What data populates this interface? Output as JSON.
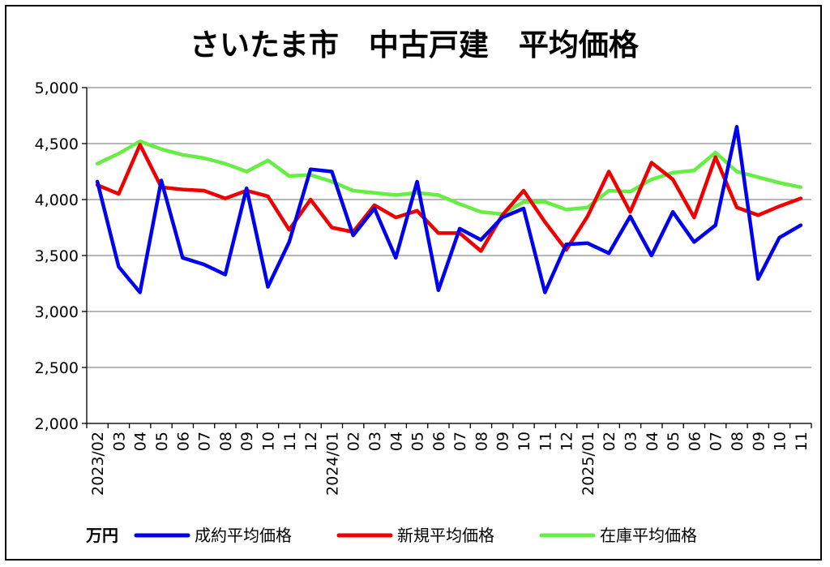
{
  "chart_data": {
    "type": "line",
    "title": "さいたま市　中古戸建　平均価格",
    "unit_label": "万円",
    "ylim": [
      2000,
      5000
    ],
    "yticks": [
      2000,
      2500,
      3000,
      3500,
      4000,
      4500,
      5000
    ],
    "ytick_labels": [
      "2,000",
      "2,500",
      "3,000",
      "3,500",
      "4,000",
      "4,500",
      "5,000"
    ],
    "x_labels": [
      "2023/02",
      "03",
      "04",
      "05",
      "06",
      "07",
      "08",
      "09",
      "10",
      "11",
      "12",
      "2024/01",
      "02",
      "03",
      "04",
      "05",
      "06",
      "07",
      "08",
      "09",
      "10",
      "11",
      "12",
      "2025/01",
      "02",
      "03",
      "04",
      "05",
      "06",
      "07",
      "08",
      "09",
      "10",
      "11"
    ],
    "grid": true,
    "legend_position": "bottom",
    "series": [
      {
        "name": "成約平均価格",
        "color": "#0000ee",
        "values": [
          4160,
          3400,
          3170,
          4170,
          3480,
          3420,
          3330,
          4100,
          3220,
          3620,
          4270,
          4250,
          3680,
          3920,
          3480,
          4160,
          3190,
          3740,
          3640,
          3840,
          3920,
          3170,
          3600,
          3610,
          3520,
          3850,
          3500,
          3890,
          3620,
          3770,
          4650,
          3290,
          3660,
          3770
        ]
      },
      {
        "name": "新規平均価格",
        "color": "#ee0000",
        "values": [
          4130,
          4050,
          4490,
          4110,
          4090,
          4080,
          4010,
          4080,
          4030,
          3730,
          4000,
          3750,
          3710,
          3950,
          3840,
          3900,
          3700,
          3700,
          3540,
          3860,
          4080,
          3800,
          3550,
          3850,
          4250,
          3890,
          4330,
          4180,
          3840,
          4380,
          3930,
          3860,
          3940,
          4010
        ]
      },
      {
        "name": "在庫平均価格",
        "color": "#66ee44",
        "values": [
          4320,
          4410,
          4520,
          4450,
          4400,
          4370,
          4320,
          4250,
          4350,
          4210,
          4220,
          4160,
          4080,
          4060,
          4040,
          4060,
          4040,
          3960,
          3890,
          3870,
          3980,
          3980,
          3910,
          3930,
          4080,
          4070,
          4180,
          4240,
          4260,
          4420,
          4250,
          4200,
          4150,
          4110
        ]
      }
    ]
  }
}
